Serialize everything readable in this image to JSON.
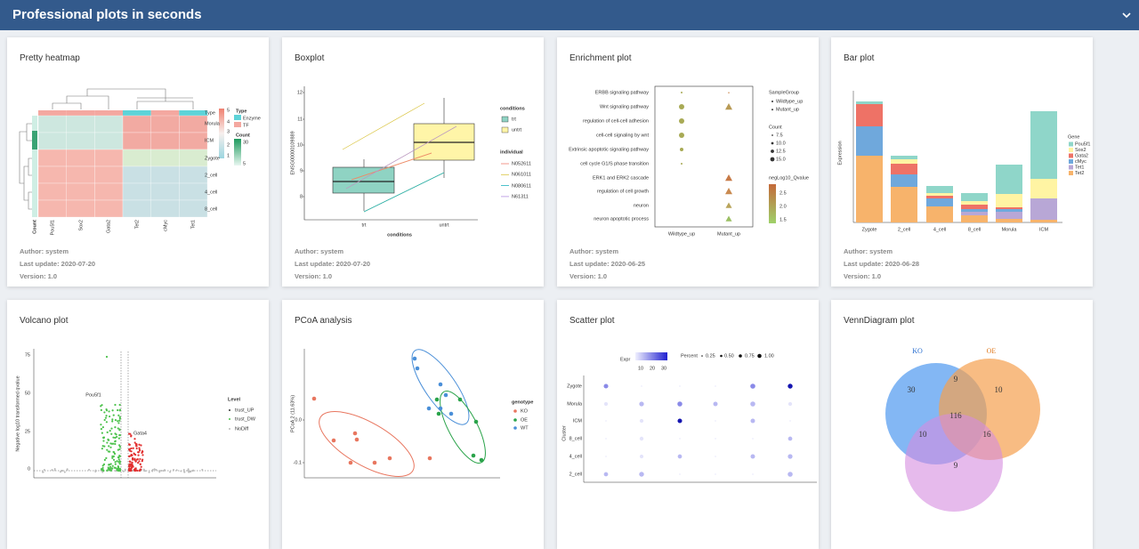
{
  "header": {
    "title": "Professional plots in seconds"
  },
  "cards": [
    {
      "title": "Pretty heatmap",
      "author": "Author: system",
      "last_update": "Last update: 2020-07-20",
      "version": "Version: 1.0",
      "plot": [
        "Type",
        "Type",
        "Enzyme",
        "TF",
        "Count",
        "30",
        "5",
        "5",
        "4",
        "3",
        "2",
        "1",
        "Morula",
        "ICM",
        "Zygote",
        "2_cell",
        "4_cell",
        "8_cell",
        "Count",
        "Pou5f1",
        "Sox2",
        "Gata2",
        "Tet2",
        "cMyc",
        "Tet1"
      ]
    },
    {
      "title": "Boxplot",
      "author": "Author: system",
      "last_update": "Last update: 2020-07-20",
      "version": "Version: 1.0",
      "plot": [
        "ENSG00000109889",
        "12",
        "11",
        "10",
        "9",
        "8",
        "trt",
        "untrt",
        "conditions",
        "conditions",
        "trt",
        "untrt",
        "individual",
        "N052611",
        "N061011",
        "N080611",
        "N61311"
      ]
    },
    {
      "title": "Enrichment plot",
      "author": "Author: system",
      "last_update": "Last update: 2020-06-25",
      "version": "Version: 1.0",
      "plot": [
        "ERBB signaling pathway",
        "Wnt signaling pathway",
        "regulation of cell-cell adhesion",
        "cell-cell signaling by wnt",
        "Extrinsic apoptotic signaling pathway",
        "cell cycle G1/S phase transition",
        "ERK1 and ERK2 cascade",
        "regulation of cell growth",
        "neuron",
        "neuron apoptotic process",
        "Wildtype_up",
        "Mutant_up",
        "SampleGroup",
        "Wildtype_up",
        "Mutant_up",
        "Count",
        "7.5",
        "10.0",
        "12.5",
        "15.0",
        "negLog10_Qvalue",
        "2.5",
        "2.0",
        "1.5"
      ]
    },
    {
      "title": "Bar plot",
      "author": "Author: system",
      "last_update": "Last update: 2020-06-28",
      "version": "Version: 1.0",
      "plot": [
        "Expression",
        "Zygote",
        "2_cell",
        "4_cell",
        "8_cell",
        "Morula",
        "ICM",
        "Gene",
        "Pou5f1",
        "Sox2",
        "Gata2",
        "cMyc",
        "Tet1",
        "Tet2"
      ]
    },
    {
      "title": "Volcano plot",
      "plot": [
        "Negative log10 transformed qvalue",
        "75",
        "50",
        "25",
        "0",
        "Pou5f1",
        "Gata4",
        "Level",
        "trust_UP",
        "trust_DW",
        "NoDiff"
      ]
    },
    {
      "title": "PCoA analysis",
      "plot": [
        "PCoA 2 (11.63%)",
        "0.0",
        "-0.1",
        "genotype",
        "KO",
        "OE",
        "WT"
      ]
    },
    {
      "title": "Scatter plot",
      "plot": [
        "Expr",
        "10",
        "20",
        "30",
        "Percent",
        "0.25",
        "0.50",
        "0.75",
        "1.00",
        "Zygote",
        "Morula",
        "ICM",
        "8_cell",
        "4_cell",
        "2_cell",
        "Cluster"
      ]
    },
    {
      "title": "VennDiagram plot",
      "plot": [
        "KO",
        "OE",
        "30",
        "9",
        "10",
        "116",
        "10",
        "16",
        "9"
      ]
    }
  ]
}
